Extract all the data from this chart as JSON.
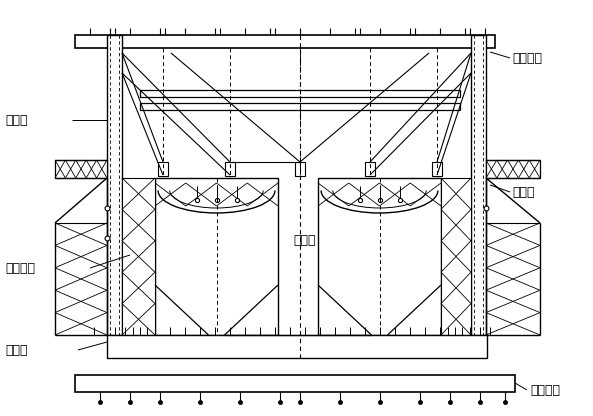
{
  "bg_color": "#ffffff",
  "line_color": "#000000",
  "fig_width": 5.93,
  "fig_height": 4.16,
  "dpi": 100,
  "labels": {
    "top_crossbeam": "前上横梁",
    "diamond_frame": "菱形架",
    "outer_mold": "外模系统",
    "bottom_longbeam": "底纵梁",
    "inner_guide": "内导梁",
    "outer_guide": "外导梁",
    "bottom_crossbeam": "前下横梁"
  }
}
